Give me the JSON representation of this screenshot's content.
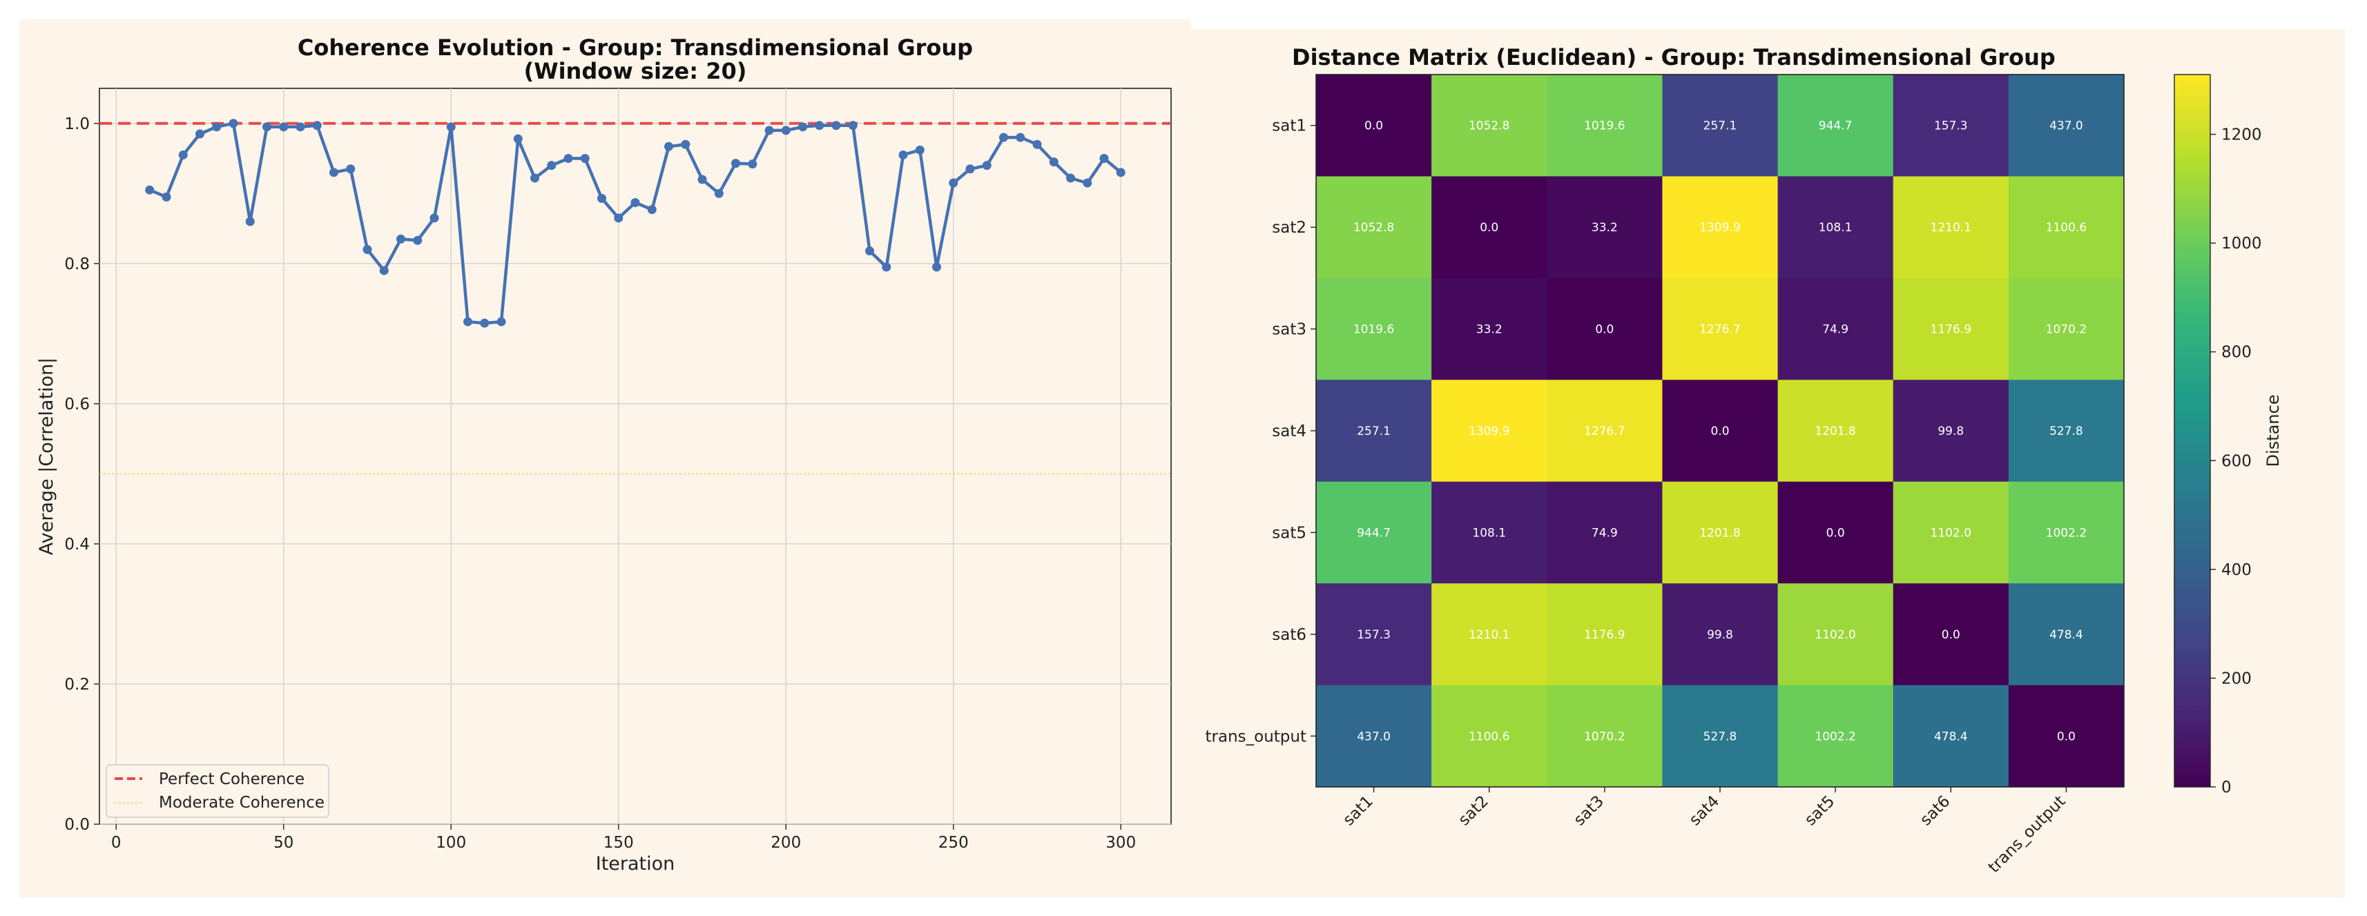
{
  "chart_data": [
    {
      "type": "line",
      "title": "Coherence Evolution - Group: Transdimensional Group",
      "subtitle": "(Window size: 20)",
      "xlabel": "Iteration",
      "ylabel": "Average |Correlation|",
      "xlim": [
        -5,
        315
      ],
      "ylim": [
        0,
        1.05
      ],
      "xticks": [
        "0",
        "50",
        "100",
        "150",
        "200",
        "250",
        "300"
      ],
      "xtick_values": [
        0,
        50,
        100,
        150,
        200,
        250,
        300
      ],
      "yticks": [
        "0.0",
        "0.2",
        "0.4",
        "0.6",
        "0.8",
        "1.0"
      ],
      "ytick_values": [
        0,
        0.2,
        0.4,
        0.6,
        0.8,
        1.0
      ],
      "grid": true,
      "legend_position": "lower-left",
      "series": [
        {
          "name": "Average |Correlation|",
          "color": "#4572b2",
          "x": [
            10,
            15,
            20,
            25,
            30,
            35,
            40,
            45,
            50,
            55,
            60,
            65,
            70,
            75,
            80,
            85,
            90,
            95,
            100,
            105,
            110,
            115,
            120,
            125,
            130,
            135,
            140,
            145,
            150,
            155,
            160,
            165,
            170,
            175,
            180,
            185,
            190,
            195,
            200,
            205,
            210,
            215,
            220,
            225,
            230,
            235,
            240,
            245,
            250,
            255,
            260,
            265,
            270,
            275,
            280,
            285,
            290,
            295,
            300
          ],
          "y": [
            0.905,
            0.895,
            0.955,
            0.985,
            0.995,
            1.0,
            0.86,
            0.995,
            0.995,
            0.995,
            0.997,
            0.93,
            0.935,
            0.82,
            0.79,
            0.835,
            0.833,
            0.865,
            0.995,
            0.717,
            0.715,
            0.717,
            0.978,
            0.922,
            0.94,
            0.95,
            0.95,
            0.893,
            0.865,
            0.887,
            0.877,
            0.967,
            0.97,
            0.92,
            0.9,
            0.943,
            0.942,
            0.99,
            0.99,
            0.995,
            0.997,
            0.997,
            0.997,
            0.818,
            0.795,
            0.955,
            0.962,
            0.795,
            0.915,
            0.935,
            0.94,
            0.98,
            0.98,
            0.97,
            0.945,
            0.922,
            0.915,
            0.95,
            0.93
          ]
        }
      ],
      "reference_lines": [
        {
          "name": "Perfect Coherence",
          "y": 1.0,
          "color": "#e84a4a",
          "style": "dashed"
        },
        {
          "name": "Moderate Coherence",
          "y": 0.5,
          "color": "#f5d776",
          "style": "dotted"
        }
      ]
    },
    {
      "type": "heatmap",
      "title": "Distance Matrix (Euclidean) - Group: Transdimensional Group",
      "row_labels": [
        "sat1",
        "sat2",
        "sat3",
        "sat4",
        "sat5",
        "sat6",
        "trans_output"
      ],
      "col_labels": [
        "sat1",
        "sat2",
        "sat3",
        "sat4",
        "sat5",
        "sat6",
        "trans_output"
      ],
      "values": [
        [
          0.0,
          1052.8,
          1019.6,
          257.1,
          944.7,
          157.3,
          437.0
        ],
        [
          1052.8,
          0.0,
          33.2,
          1309.9,
          108.1,
          1210.1,
          1100.6
        ],
        [
          1019.6,
          33.2,
          0.0,
          1276.7,
          74.9,
          1176.9,
          1070.2
        ],
        [
          257.1,
          1309.9,
          1276.7,
          0.0,
          1201.8,
          99.8,
          527.8
        ],
        [
          944.7,
          108.1,
          74.9,
          1201.8,
          0.0,
          1102.0,
          1002.2
        ],
        [
          157.3,
          1210.1,
          1176.9,
          99.8,
          1102.0,
          0.0,
          478.4
        ],
        [
          437.0,
          1100.6,
          1070.2,
          527.8,
          1002.2,
          478.4,
          0.0
        ]
      ],
      "colormap": "viridis",
      "vmin": 0,
      "vmax": 1309.9,
      "colorbar_label": "Distance",
      "colorbar_ticks": [
        "0",
        "200",
        "400",
        "600",
        "800",
        "1000",
        "1200"
      ],
      "colorbar_tick_values": [
        0,
        200,
        400,
        600,
        800,
        1000,
        1200
      ]
    }
  ],
  "colors": {
    "figure_bg": "#fdf4ea",
    "grid": "#d6d2cc"
  }
}
